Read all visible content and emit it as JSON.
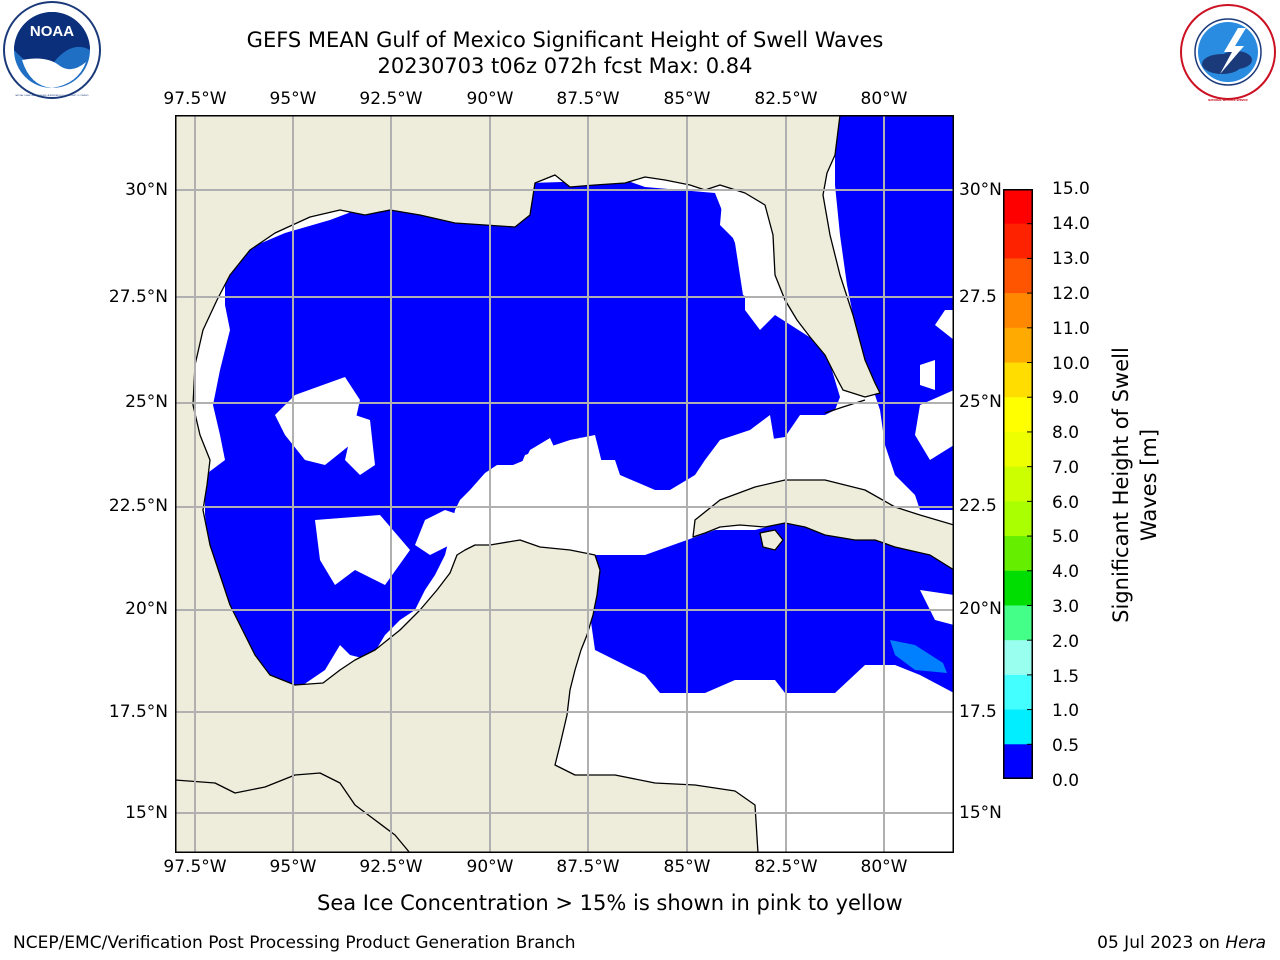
{
  "header": {
    "title_line1": "GEFS MEAN Gulf of Mexico Significant Height of Swell Waves",
    "title_line2": "20230703 t06z 072h fcst   Max: 0.84"
  },
  "logos": {
    "noaa": {
      "text": "NOAA",
      "ring_text": "NATIONAL OCEANIC AND ATMOSPHERIC ADMINISTRATION  U.S. DEPARTMENT OF COMMERCE"
    },
    "nws": {
      "ring_text": "NATIONAL WEATHER SERVICE"
    }
  },
  "map": {
    "lon_labels": [
      "97.5°W",
      "95°W",
      "92.5°W",
      "90°W",
      "87.5°W",
      "85°W",
      "82.5°W",
      "80°W"
    ],
    "lat_labels_left": [
      "30°N",
      "27.5°N",
      "25°N",
      "22.5°N",
      "20°N",
      "17.5°N",
      "15°N"
    ],
    "lat_labels_right": [
      "30°N",
      "27.5",
      "25°N",
      "22.5",
      "20°N",
      "17.5",
      "15°N"
    ],
    "colors": {
      "land": "#eeeddc",
      "swell_0_0_5": "#0000ff",
      "swell_0_5_1_0": "#0080ff",
      "grid": "#b0b0b0",
      "coast": "#000000"
    }
  },
  "colorbar": {
    "title_line1": "Significant Height of Swell",
    "title_line2": "Waves [m]",
    "ticks": [
      "15.0",
      "14.0",
      "13.0",
      "12.0",
      "11.0",
      "10.0",
      "9.0",
      "8.0",
      "7.0",
      "6.0",
      "5.0",
      "4.0",
      "3.0",
      "2.0",
      "1.5",
      "1.0",
      "0.5",
      "0.0"
    ],
    "colors": [
      "#ff0000",
      "#ff2200",
      "#ff5500",
      "#ff8800",
      "#ffaa00",
      "#ffdd00",
      "#ffff00",
      "#eeff00",
      "#ccff00",
      "#aaff00",
      "#66ee00",
      "#00dd00",
      "#44ff88",
      "#99ffee",
      "#44ffff",
      "#00eeff",
      "#0080ff",
      "#0000ff"
    ]
  },
  "note": "Sea Ice Concentration > 15% is shown in pink to yellow",
  "footer": {
    "left": "NCEP/EMC/Verification Post Processing Product Generation Branch",
    "date": "05 Jul 2023 on ",
    "host": "Hera"
  }
}
